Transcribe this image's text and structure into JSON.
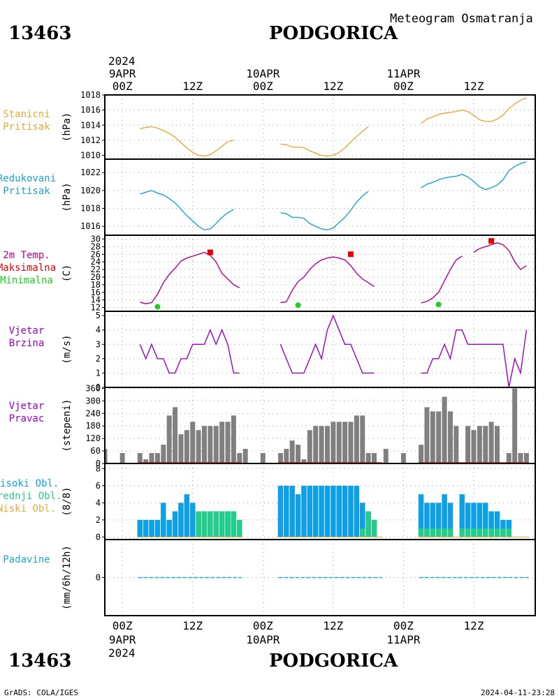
{
  "header": {
    "station_id": "13463",
    "station_name": "PODGORICA",
    "subtitle": "Meteogram Osmatranja"
  },
  "footer": {
    "credits": "GrADS: COLA/IGES",
    "timestamp": "2024-04-11-23:28",
    "station_id": "13463",
    "station_name": "PODGORICA"
  },
  "time_axis": {
    "top_year": "2024",
    "bottom_year": "2024",
    "date_labels": [
      "9APR",
      "10APR",
      "11APR"
    ],
    "top_hour_labels": [
      "00Z",
      "12Z",
      "00Z",
      "12Z",
      "00Z",
      "12Z"
    ],
    "bottom_hour_labels": [
      "00Z",
      "12Z",
      "00Z",
      "12Z",
      "00Z",
      "12Z"
    ],
    "range_hours": [
      -3,
      70.5
    ]
  },
  "colors": {
    "stanicni": "#e6a93a",
    "redukovani": "#1aa3cc",
    "temp": "#b3008f",
    "max": "#e60000",
    "min": "#22cc22",
    "wind": "#9900cc",
    "bars": "#808080",
    "high_cloud": "#0ea0e6",
    "mid_cloud": "#26cc8c",
    "low_cloud": "#e6a93a",
    "precip": "#22aacc",
    "frame": "#000000"
  },
  "panels": {
    "stanicni": {
      "label_lines": [
        "Stanicni",
        "Pritisak"
      ],
      "unit": "(hPa)"
    },
    "redukovani": {
      "label_lines": [
        "Redukovani",
        "Pritisak"
      ],
      "unit": "(hPa)"
    },
    "temperature": {
      "label_lines": [
        "2m Temp.",
        "Maksimalna",
        "Minimalna"
      ],
      "unit": "(C)"
    },
    "wind_speed": {
      "label_lines": [
        "Vjetar",
        "Brzina"
      ],
      "unit": "(m/s)"
    },
    "wind_dir": {
      "label_lines": [
        "Vjetar",
        "Pravac"
      ],
      "unit": "(stepeni)"
    },
    "clouds": {
      "label_lines": [
        "Visoki Obl.",
        "Srednji Obl.",
        "Niski Obl."
      ],
      "unit": "(8/8)"
    },
    "precip": {
      "label_lines": [
        "Padavine"
      ],
      "unit": "(mm/6h/12h)"
    }
  },
  "chart_data": [
    {
      "type": "line",
      "id": "stanicni",
      "ylim": [
        1009.5,
        1018
      ],
      "yticks": [
        1010,
        1012,
        1014,
        1016,
        1018
      ],
      "x": [
        3,
        4,
        5,
        6,
        7,
        8,
        9,
        10,
        11,
        12,
        13,
        14,
        15,
        16,
        17,
        18,
        19,
        20,
        27,
        28,
        29,
        30,
        31,
        32,
        33,
        34,
        35,
        36,
        37,
        38,
        39,
        40,
        41,
        42,
        43,
        44,
        51,
        52,
        53,
        54,
        55,
        56,
        57,
        58,
        59,
        60,
        61,
        62,
        63,
        64,
        65,
        66,
        67,
        68,
        69
      ],
      "y": [
        1013.5,
        1013.7,
        1013.8,
        1013.6,
        1013.3,
        1012.9,
        1012.4,
        1011.7,
        1011.0,
        1010.4,
        1010.0,
        1009.9,
        1010.1,
        1010.6,
        1011.2,
        1011.8,
        1012.0,
        null,
        1011.5,
        1011.4,
        1011.1,
        1011.1,
        1011.0,
        1010.6,
        1010.3,
        1010.0,
        1009.9,
        1010.0,
        1010.4,
        1011.0,
        1011.8,
        1012.5,
        1013.2,
        1013.8,
        null,
        null,
        1014.2,
        1014.8,
        1015.1,
        1015.4,
        1015.6,
        1015.7,
        1015.8,
        1016.0,
        1015.8,
        1015.3,
        1014.7,
        1014.5,
        1014.5,
        1014.8,
        1015.3,
        1016.2,
        1016.8,
        1017.3,
        1017.6
      ]
    },
    {
      "type": "line",
      "id": "redukovani",
      "ylim": [
        1015,
        1023.5
      ],
      "yticks": [
        1016,
        1018,
        1020,
        1022
      ],
      "x": [
        3,
        4,
        5,
        6,
        7,
        8,
        9,
        10,
        11,
        12,
        13,
        14,
        15,
        16,
        17,
        18,
        19,
        20,
        27,
        28,
        29,
        30,
        31,
        32,
        33,
        34,
        35,
        36,
        37,
        38,
        39,
        40,
        41,
        42,
        43,
        44,
        51,
        52,
        53,
        54,
        55,
        56,
        57,
        58,
        59,
        60,
        61,
        62,
        63,
        64,
        65,
        66,
        67,
        68,
        69
      ],
      "y": [
        1019.6,
        1019.8,
        1020.0,
        1019.7,
        1019.5,
        1019.1,
        1018.6,
        1017.9,
        1017.2,
        1016.6,
        1016.0,
        1015.6,
        1015.7,
        1016.3,
        1017.0,
        1017.5,
        1017.9,
        null,
        1017.5,
        1017.4,
        1017.0,
        1017.0,
        1016.9,
        1016.3,
        1016.0,
        1015.7,
        1015.6,
        1015.8,
        1016.4,
        1017.0,
        1017.8,
        1018.7,
        1019.4,
        1019.9,
        null,
        null,
        1020.3,
        1020.7,
        1020.9,
        1021.2,
        1021.4,
        1021.5,
        1021.6,
        1021.8,
        1021.5,
        1021.0,
        1020.4,
        1020.1,
        1020.3,
        1020.6,
        1021.2,
        1022.2,
        1022.7,
        1023.0,
        1023.2
      ]
    },
    {
      "type": "line",
      "id": "temperature",
      "ylim": [
        11,
        31
      ],
      "yticks": [
        12,
        14,
        16,
        18,
        20,
        22,
        24,
        26,
        28,
        30
      ],
      "x": [
        3,
        4,
        5,
        6,
        7,
        8,
        9,
        10,
        11,
        12,
        13,
        14,
        15,
        16,
        17,
        18,
        19,
        20,
        27,
        28,
        29,
        30,
        31,
        32,
        33,
        34,
        35,
        36,
        37,
        38,
        39,
        40,
        41,
        42,
        43,
        44,
        51,
        52,
        53,
        54,
        55,
        56,
        57,
        58,
        59,
        60,
        61,
        62,
        63,
        64,
        65,
        66,
        67,
        68,
        69
      ],
      "y": [
        13.4,
        13.0,
        13.3,
        15.5,
        18.5,
        20.7,
        22.3,
        24.2,
        25.0,
        25.5,
        26.0,
        26.5,
        25.7,
        24.0,
        21.0,
        19.5,
        18.0,
        17.2,
        13.3,
        13.5,
        16.5,
        18.8,
        20.0,
        22.0,
        23.5,
        24.5,
        25.0,
        25.3,
        25.0,
        24.5,
        23.0,
        21.0,
        19.5,
        18.5,
        17.5,
        null,
        13.2,
        13.6,
        14.5,
        16.0,
        19.0,
        22.0,
        24.5,
        25.5,
        null,
        26.5,
        27.5,
        28.0,
        28.5,
        29.0,
        28.5,
        27.0,
        24.0,
        22.0,
        23.0
      ]
    },
    {
      "type": "scatter",
      "id": "temperature_extremes",
      "series": [
        {
          "name": "Maksimalna",
          "x": [
            15,
            39,
            63
          ],
          "y": [
            26.5,
            26.0,
            29.5
          ]
        },
        {
          "name": "Minimalna",
          "x": [
            6,
            30,
            54
          ],
          "y": [
            12.2,
            12.6,
            12.8
          ]
        }
      ]
    },
    {
      "type": "line",
      "id": "wind_speed",
      "ylim": [
        0,
        5.3
      ],
      "yticks": [
        0,
        1,
        2,
        3,
        4,
        5
      ],
      "x": [
        3,
        4,
        5,
        6,
        7,
        8,
        9,
        10,
        11,
        12,
        13,
        14,
        15,
        16,
        17,
        18,
        19,
        20,
        27,
        28,
        29,
        30,
        31,
        32,
        33,
        34,
        35,
        36,
        37,
        38,
        39,
        40,
        41,
        42,
        43,
        44,
        51,
        52,
        53,
        54,
        55,
        56,
        57,
        58,
        59,
        60,
        61,
        62,
        63,
        64,
        65,
        66,
        67,
        68,
        69
      ],
      "y": [
        3,
        2,
        3,
        2,
        2,
        1,
        1,
        2,
        2,
        3,
        3,
        3,
        4,
        3,
        4,
        3,
        1,
        1,
        3,
        2,
        1,
        1,
        1,
        2,
        3,
        2,
        4,
        5,
        4,
        3,
        3,
        2,
        1,
        1,
        1,
        null,
        1,
        1,
        2,
        2,
        3,
        2,
        4,
        4,
        3,
        3,
        3,
        3,
        3,
        3,
        3,
        0,
        2,
        1,
        4
      ]
    },
    {
      "type": "bar",
      "id": "wind_dir",
      "ylim": [
        0,
        365
      ],
      "yticks": [
        0,
        60,
        120,
        180,
        240,
        300,
        360
      ],
      "x": [
        -3,
        0,
        3,
        4,
        5,
        6,
        7,
        8,
        9,
        10,
        11,
        12,
        13,
        14,
        15,
        16,
        17,
        18,
        19,
        20,
        21,
        24,
        27,
        28,
        29,
        30,
        31,
        32,
        33,
        34,
        35,
        36,
        37,
        38,
        39,
        40,
        41,
        42,
        43,
        44,
        45,
        48,
        51,
        52,
        53,
        54,
        55,
        56,
        57,
        58,
        59,
        60,
        61,
        62,
        63,
        64,
        65,
        66,
        67,
        68,
        69
      ],
      "values": [
        70,
        50,
        50,
        20,
        50,
        50,
        90,
        230,
        270,
        140,
        160,
        200,
        160,
        180,
        180,
        180,
        200,
        200,
        230,
        50,
        70,
        50,
        50,
        70,
        110,
        90,
        20,
        160,
        180,
        180,
        180,
        200,
        200,
        200,
        200,
        230,
        230,
        50,
        50,
        null,
        70,
        50,
        90,
        270,
        250,
        250,
        320,
        250,
        180,
        null,
        180,
        160,
        180,
        180,
        200,
        180,
        null,
        50,
        360,
        50,
        50
      ]
    },
    {
      "type": "bar",
      "id": "clouds",
      "ylim": [
        -0.3,
        8.6
      ],
      "yticks": [
        0,
        2,
        4,
        6,
        8
      ],
      "x": [
        3,
        4,
        5,
        6,
        7,
        8,
        9,
        10,
        11,
        12,
        13,
        14,
        15,
        16,
        17,
        18,
        19,
        20,
        27,
        28,
        29,
        30,
        31,
        32,
        33,
        34,
        35,
        36,
        37,
        38,
        39,
        40,
        41,
        42,
        43,
        44,
        51,
        52,
        53,
        54,
        55,
        56,
        57,
        58,
        59,
        60,
        61,
        62,
        63,
        64,
        65,
        66,
        67,
        68,
        69
      ],
      "series": [
        {
          "name": "Visoki Obl.",
          "values": [
            2,
            2,
            2,
            2,
            4,
            2,
            3,
            4,
            5,
            4,
            3,
            3,
            3,
            3,
            3,
            3,
            3,
            2,
            6,
            6,
            6,
            5,
            6,
            6,
            6,
            6,
            6,
            6,
            6,
            6,
            6,
            6,
            4,
            3,
            2,
            null,
            5,
            4,
            4,
            4,
            5,
            4,
            null,
            5,
            4,
            4,
            4,
            4,
            3,
            3,
            2,
            2,
            null,
            null,
            null
          ]
        },
        {
          "name": "Srednji Obl.",
          "values": [
            0,
            0,
            0,
            0,
            0,
            0,
            0,
            0,
            0,
            0,
            3,
            3,
            3,
            3,
            3,
            3,
            3,
            2,
            0,
            0,
            0,
            0,
            0,
            0,
            0,
            0,
            0,
            0,
            0,
            0,
            0,
            0,
            1,
            3,
            2,
            null,
            1,
            1,
            1,
            1,
            1,
            1,
            null,
            1,
            1,
            1,
            1,
            1,
            1,
            1,
            1,
            1,
            null,
            null,
            null
          ]
        },
        {
          "name": "Niski Obl.",
          "values": [
            0,
            0,
            0,
            0,
            0,
            0,
            0,
            0,
            0,
            0,
            0,
            0,
            0,
            0,
            0,
            0,
            0,
            0,
            0,
            0,
            0,
            0,
            0,
            0,
            0,
            0,
            0,
            0,
            0,
            0,
            0,
            0,
            0,
            0,
            0,
            null,
            0,
            0,
            0,
            0,
            0,
            0,
            null,
            0,
            0,
            0,
            0,
            0,
            0,
            0,
            0,
            0,
            null,
            null,
            null
          ]
        }
      ]
    },
    {
      "type": "bar",
      "id": "precip",
      "ylim": [
        -5,
        5
      ],
      "yticks": [
        0
      ],
      "x": [
        3,
        4,
        5,
        6,
        7,
        8,
        9,
        10,
        11,
        12,
        13,
        14,
        15,
        16,
        17,
        18,
        19,
        20,
        27,
        28,
        29,
        30,
        31,
        32,
        33,
        34,
        35,
        36,
        37,
        38,
        39,
        40,
        41,
        42,
        43,
        44,
        51,
        52,
        53,
        54,
        55,
        56,
        57,
        58,
        59,
        60,
        61,
        62,
        63,
        64,
        65,
        66,
        67,
        68,
        69
      ],
      "values": [
        0,
        0,
        0,
        0,
        0,
        0,
        0,
        0,
        0,
        0,
        0,
        0,
        0,
        0,
        0,
        0,
        0,
        0,
        0,
        0,
        0,
        0,
        0,
        0,
        0,
        0,
        0,
        0,
        0,
        0,
        0,
        0,
        0,
        0,
        0,
        0,
        0,
        0,
        0,
        0,
        0,
        0,
        0,
        0,
        0,
        0,
        0,
        0,
        0,
        0,
        0,
        0,
        0,
        0,
        0
      ]
    }
  ]
}
